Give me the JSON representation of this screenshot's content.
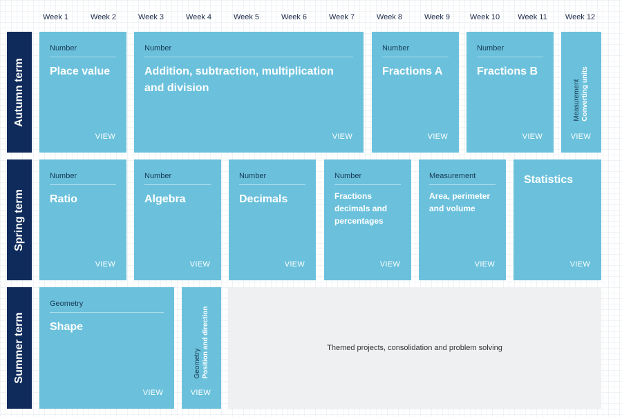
{
  "weeks": [
    "Week 1",
    "Week 2",
    "Week 3",
    "Week 4",
    "Week 5",
    "Week 6",
    "Week 7",
    "Week 8",
    "Week 9",
    "Week 10",
    "Week 11",
    "Week 12"
  ],
  "terms": {
    "autumn": "Autumn term",
    "spring": "Spring term",
    "summer": "Summer term"
  },
  "view_label": "VIEW",
  "autumn_blocks": [
    {
      "category": "Number",
      "title": "Place value"
    },
    {
      "category": "Number",
      "title": "Addition, subtraction, multiplication and division"
    },
    {
      "category": "Number",
      "title": "Fractions A"
    },
    {
      "category": "Number",
      "title": "Fractions B"
    },
    {
      "category": "Measurement",
      "title": "Converting units"
    }
  ],
  "spring_blocks": [
    {
      "category": "Number",
      "title": "Ratio"
    },
    {
      "category": "Number",
      "title": "Algebra"
    },
    {
      "category": "Number",
      "title": "Decimals"
    },
    {
      "category": "Number",
      "title": "Fractions decimals and percentages"
    },
    {
      "category": "Measurement",
      "title": "Area, perimeter and volume"
    },
    {
      "category": "",
      "title": "Statistics"
    }
  ],
  "summer_blocks": [
    {
      "category": "Geometry",
      "title": "Shape"
    },
    {
      "category": "Geometry",
      "title": "Position and direction"
    }
  ],
  "themed_text": "Themed projects, consolidation and problem solving",
  "colors": {
    "block": "#6bc1dc",
    "term_label": "#0f2b5b",
    "themed_bg": "#eef0f2"
  }
}
